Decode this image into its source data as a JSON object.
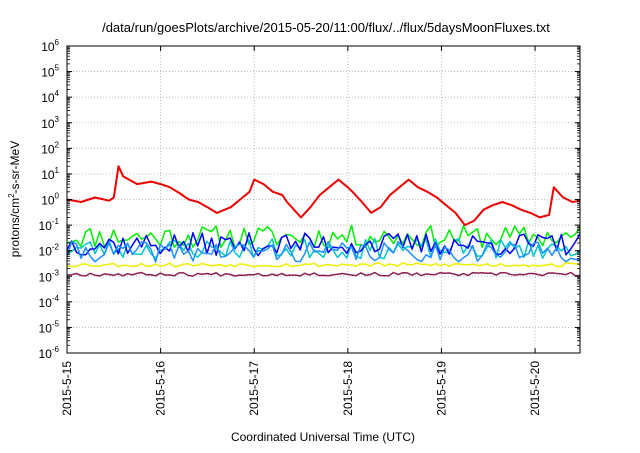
{
  "chart_data": {
    "type": "line",
    "title": "/data/run/goesPlots/archive/2015-05-20/11:00/flux/../flux/5daysMoonFluxes.txt",
    "xlabel": "Coordinated Universal Time (UTC)",
    "ylabel": {
      "pre": "protons/cm",
      "sup": "2",
      "post": "-s-sr-MeV"
    },
    "yscale": "log",
    "ylim_exp": [
      -6,
      6
    ],
    "y_ticks": [
      {
        "base": "10",
        "exp": "-6"
      },
      {
        "base": "10",
        "exp": "-5"
      },
      {
        "base": "10",
        "exp": "-4"
      },
      {
        "base": "10",
        "exp": "-3"
      },
      {
        "base": "10",
        "exp": "-2"
      },
      {
        "base": "10",
        "exp": "-1"
      },
      {
        "base": "10",
        "exp": "0"
      },
      {
        "base": "10",
        "exp": "1"
      },
      {
        "base": "10",
        "exp": "2"
      },
      {
        "base": "10",
        "exp": "3"
      },
      {
        "base": "10",
        "exp": "4"
      },
      {
        "base": "10",
        "exp": "5"
      },
      {
        "base": "10",
        "exp": "6"
      }
    ],
    "x_tick_labels": [
      "2015-5-15",
      "2015-5-16",
      "2015-5-17",
      "2015-5-18",
      "2015-5-19",
      "2015-5-20"
    ],
    "xlim_days": [
      0,
      5.48
    ],
    "grid": true,
    "series": [
      {
        "color": "#ee0000",
        "width": 2,
        "x": [
          0,
          0.15,
          0.3,
          0.45,
          0.5,
          0.55,
          0.6,
          0.75,
          0.9,
          1.0,
          1.1,
          1.2,
          1.3,
          1.4,
          1.5,
          1.6,
          1.75,
          1.85,
          1.95,
          2.0,
          2.1,
          2.2,
          2.3,
          2.35,
          2.5,
          2.6,
          2.7,
          2.8,
          2.9,
          3.0,
          3.05,
          3.15,
          3.25,
          3.35,
          3.45,
          3.55,
          3.65,
          3.75,
          3.85,
          3.95,
          4.05,
          4.15,
          4.25,
          4.35,
          4.45,
          4.55,
          4.65,
          4.75,
          4.85,
          4.95,
          5.05,
          5.15,
          5.2,
          5.3,
          5.4,
          5.48
        ],
        "y": [
          1.0,
          0.8,
          1.2,
          0.9,
          1.2,
          20,
          8,
          4,
          5,
          4,
          3,
          1.8,
          1.0,
          0.8,
          0.5,
          0.3,
          0.5,
          1.0,
          2.0,
          6,
          4,
          2,
          1.5,
          0.8,
          0.2,
          0.5,
          1.5,
          3,
          6,
          3,
          2.0,
          0.8,
          0.3,
          0.5,
          1.5,
          3,
          6,
          3,
          2.0,
          1.2,
          0.6,
          0.3,
          0.1,
          0.15,
          0.4,
          0.6,
          0.8,
          0.6,
          0.4,
          0.3,
          0.2,
          0.25,
          3,
          1.2,
          0.8,
          0.9
        ]
      },
      {
        "color": "#00ee00",
        "width": 1.5,
        "seed": 11,
        "base": 0.035,
        "spread": 0.45,
        "steps": 110
      },
      {
        "color": "#00c8c8",
        "width": 1.5,
        "seed": 23,
        "base": 0.012,
        "spread": 0.4,
        "steps": 110
      },
      {
        "color": "#0000ff",
        "width": 1.5,
        "seed": 37,
        "base": 0.018,
        "spread": 0.45,
        "steps": 110
      },
      {
        "color": "#1e90ff",
        "width": 1.5,
        "seed": 41,
        "base": 0.009,
        "spread": 0.4,
        "steps": 110
      },
      {
        "color": "#eeee00",
        "width": 1.5,
        "seed": 53,
        "base": 0.0028,
        "spread": 0.08,
        "steps": 110
      },
      {
        "color": "#8b2252",
        "width": 1.5,
        "seed": 67,
        "base": 0.0012,
        "spread": 0.07,
        "steps": 110
      }
    ]
  }
}
